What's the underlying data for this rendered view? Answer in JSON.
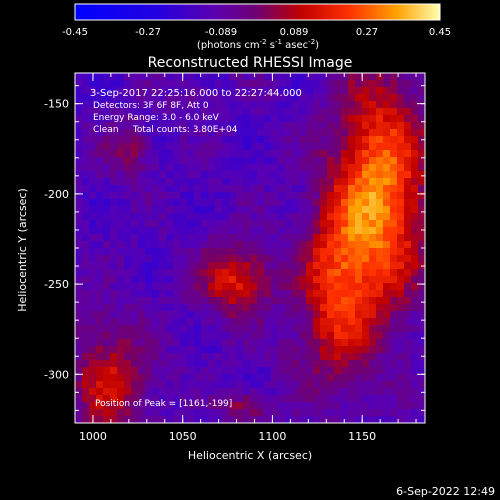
{
  "chart_data": {
    "type": "heatmap",
    "title": "Reconstructed RHESSI Image",
    "colorbar": {
      "ticks": [
        "-0.45",
        "-0.27",
        "-0.089",
        "0.089",
        "0.27",
        "0.45"
      ],
      "unit_main": "(photons cm",
      "unit_exp1": "-2",
      "unit_s": " s",
      "unit_exp2": "-1",
      "unit_asec": " asec",
      "unit_exp3": "-2",
      "unit_close": ")",
      "range": [
        -0.45,
        0.45
      ]
    },
    "xlabel": "Heliocentric X (arcsec)",
    "ylabel": "Heliocentric Y (arcsec)",
    "xticks": [
      "1000",
      "1050",
      "1100",
      "1150"
    ],
    "yticks": [
      "-150",
      "-200",
      "-250",
      "-300"
    ],
    "xlim": [
      990,
      1185
    ],
    "ylim": [
      -327,
      -133
    ],
    "annotations": [
      "3-Sep-2017 22:25:16.000 to 22:27:44.000",
      "Detectors: 3F 6F 8F, Att 0",
      "Energy Range: 3.0 - 6.0 keV",
      "Clean     Total counts: 3.80E+04"
    ],
    "peak_label": "Position of Peak = [1161,-199]",
    "peak": [
      1161,
      -199
    ],
    "sources": [
      {
        "x": 1160,
        "y": -200,
        "sx": 18,
        "sy": 45,
        "amp": 0.44
      },
      {
        "x": 1135,
        "y": -255,
        "sx": 14,
        "sy": 35,
        "amp": 0.3
      },
      {
        "x": 1080,
        "y": -248,
        "sx": 14,
        "sy": 14,
        "amp": 0.3
      },
      {
        "x": 1010,
        "y": -305,
        "sx": 15,
        "sy": 22,
        "amp": 0.25
      },
      {
        "x": 1020,
        "y": -175,
        "sx": 9,
        "sy": 10,
        "amp": 0.17
      },
      {
        "x": 1055,
        "y": -145,
        "sx": 8,
        "sy": 8,
        "amp": 0.06
      },
      {
        "x": 1085,
        "y": -318,
        "sx": 10,
        "sy": 6,
        "amp": 0.18
      },
      {
        "x": 1110,
        "y": -290,
        "sx": 8,
        "sy": 8,
        "amp": 0.05
      },
      {
        "x": 1000,
        "y": -270,
        "sx": 8,
        "sy": 8,
        "amp": 0.05
      }
    ],
    "background": -0.13
  },
  "footer": {
    "timestamp": "6-Sep-2022 12:49"
  }
}
